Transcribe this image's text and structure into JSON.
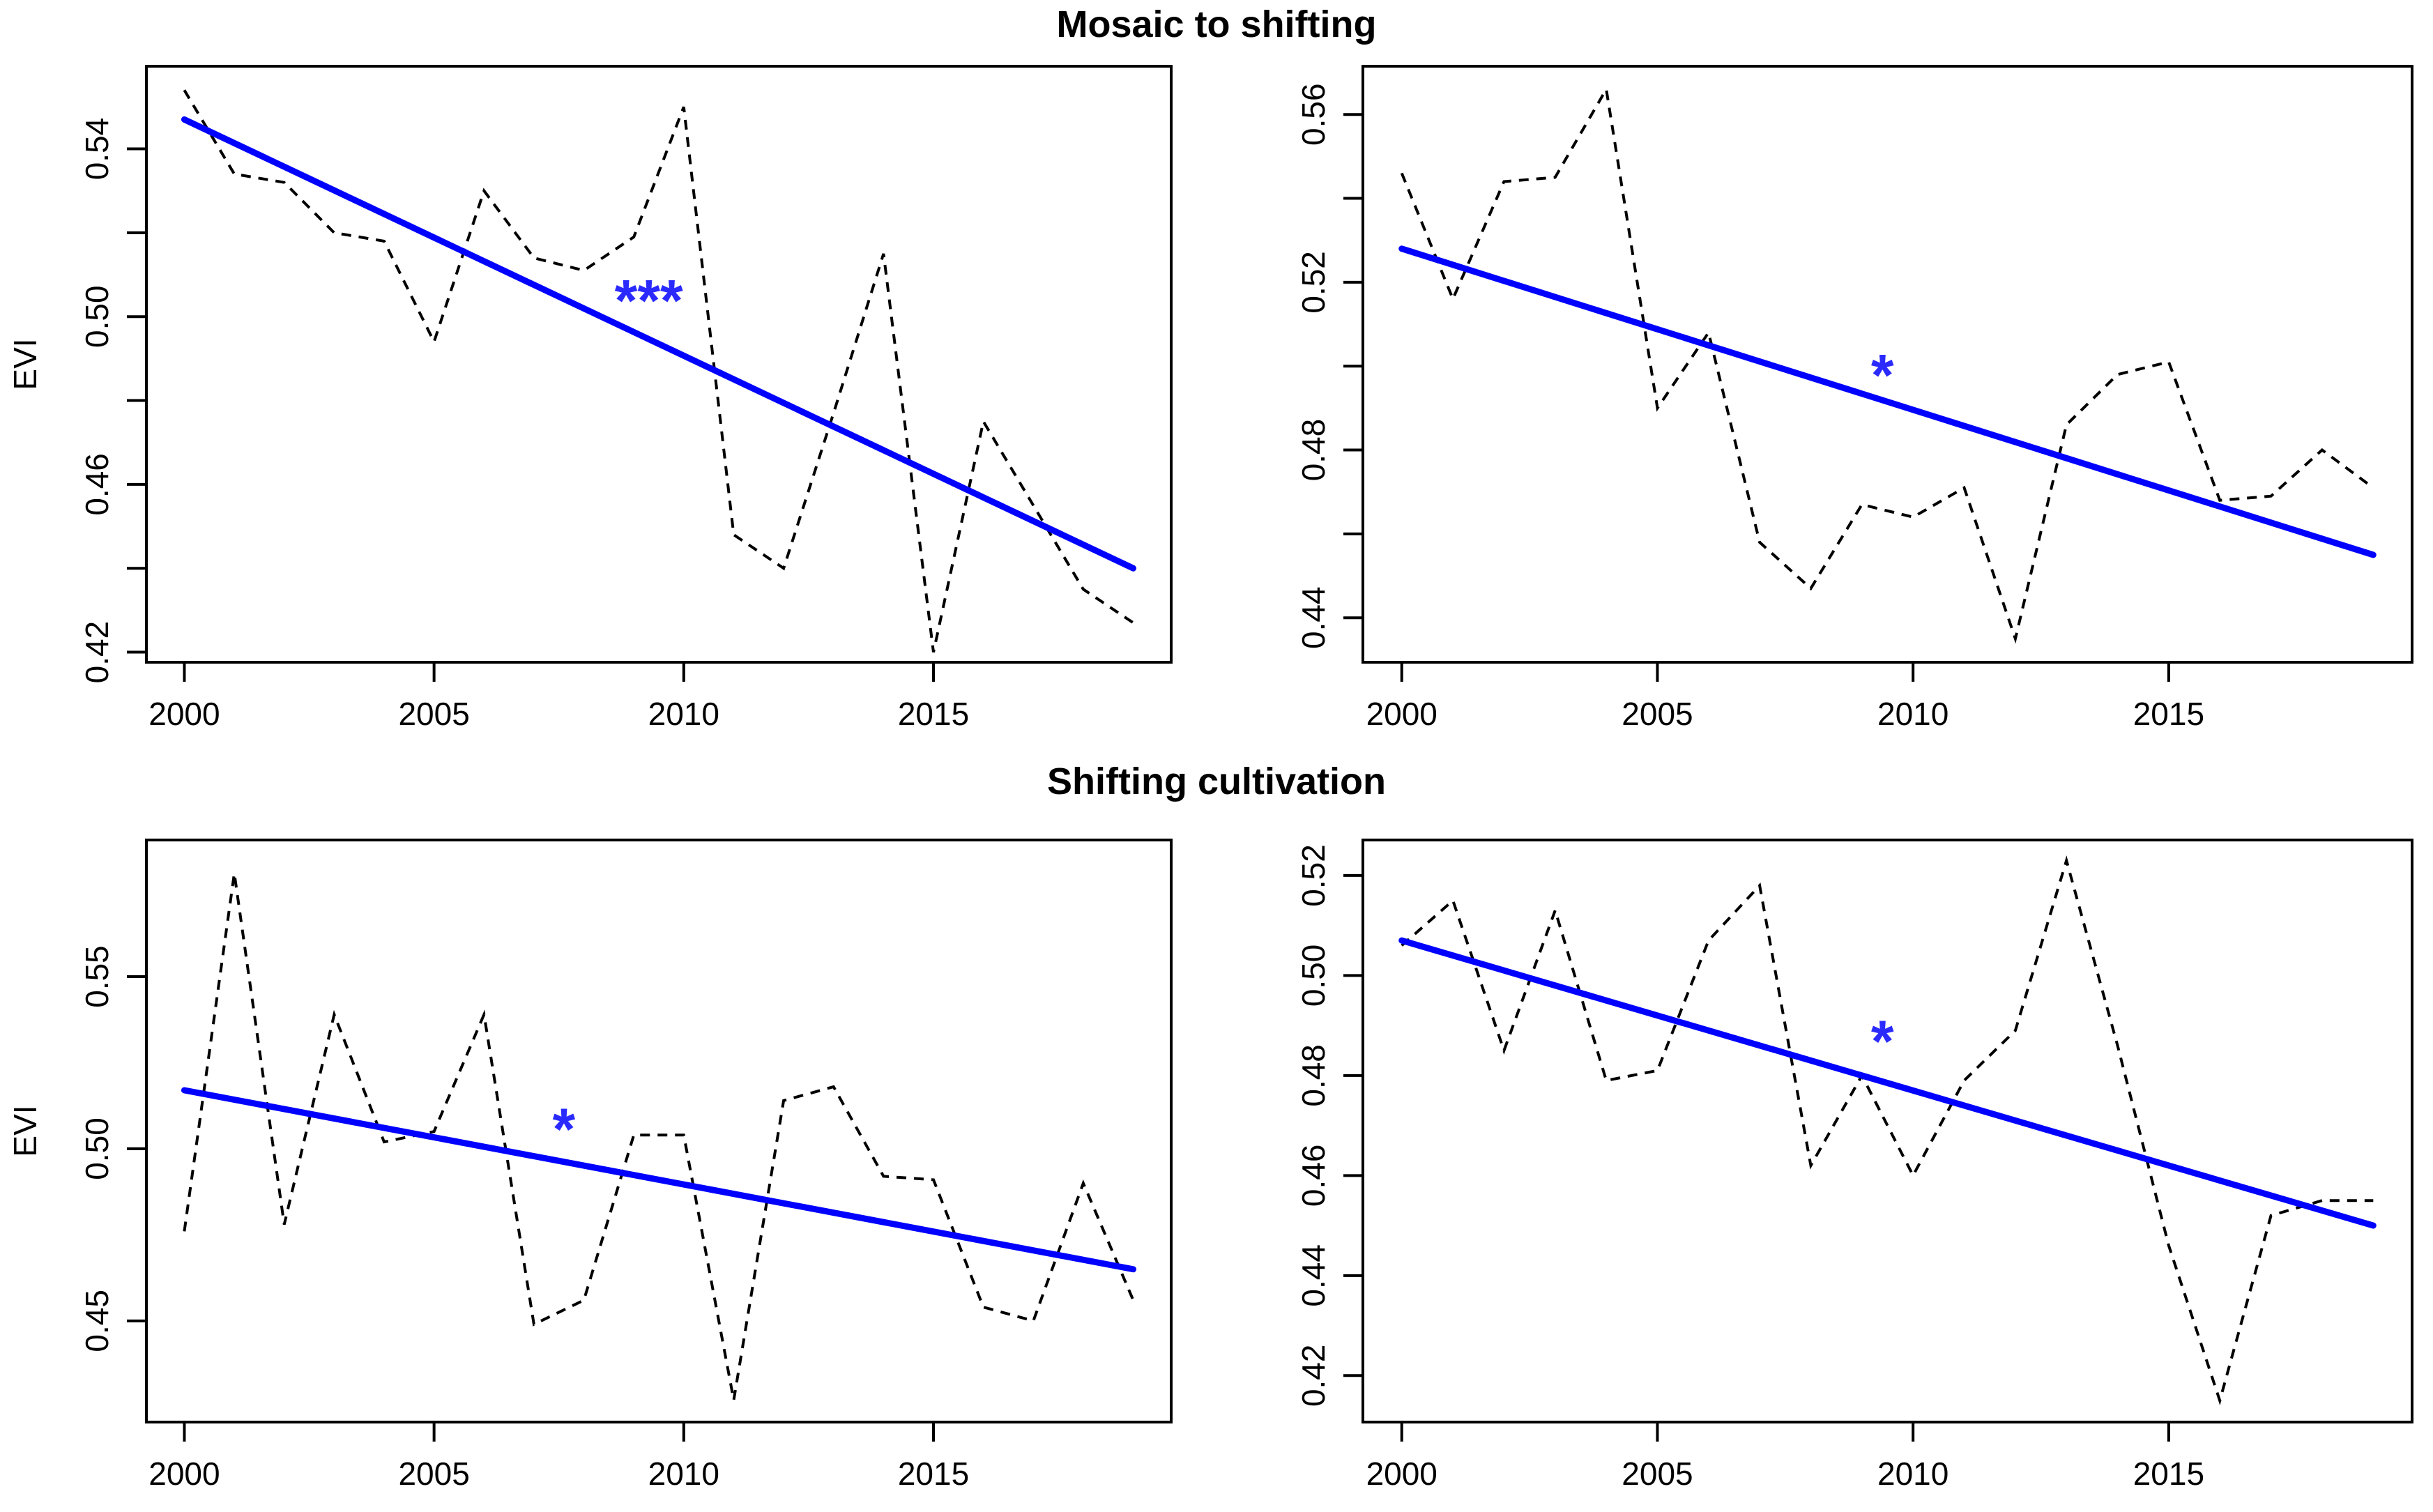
{
  "figure": {
    "titles": [
      "Mosaic to shifting",
      "Shifting cultivation"
    ],
    "colors": {
      "series": "#000000",
      "trend": "#0000ff",
      "marker": "#2a2aff",
      "axis": "#000000",
      "background": "#ffffff"
    }
  },
  "chart_data": [
    {
      "type": "line",
      "panel": "mosaic-to-shifting-left",
      "group_title": "Mosaic to shifting",
      "ylabel": "EVI",
      "x": [
        2000,
        2001,
        2002,
        2003,
        2004,
        2005,
        2006,
        2007,
        2008,
        2009,
        2010,
        2011,
        2012,
        2013,
        2014,
        2015,
        2016,
        2017,
        2018,
        2019
      ],
      "series": [
        {
          "name": "annual EVI",
          "style": "dashed",
          "color": "#000000",
          "values": [
            0.554,
            0.534,
            0.532,
            0.52,
            0.518,
            0.494,
            0.53,
            0.514,
            0.511,
            0.519,
            0.55,
            0.448,
            0.44,
            0.477,
            0.515,
            0.42,
            0.475,
            0.455,
            0.435,
            0.427
          ]
        },
        {
          "name": "linear trend",
          "style": "solid",
          "color": "#0000ff",
          "from": [
            2000,
            0.547
          ],
          "to": [
            2019,
            0.44
          ]
        }
      ],
      "significance_marker": {
        "text": "***",
        "x": 2009.3,
        "y": 0.504
      },
      "xlim": [
        1999.24,
        2019.76
      ],
      "ylim": [
        0.4176,
        0.5597
      ],
      "xticks": [
        2000,
        2005,
        2010,
        2015
      ],
      "xtick_labels": [
        "2000",
        "2005",
        "2010",
        "2015"
      ],
      "yticks": [
        0.42,
        0.44,
        0.46,
        0.48,
        0.5,
        0.52,
        0.54
      ],
      "ytick_labels": [
        "0.42",
        "",
        "0.46",
        "",
        "0.50",
        "",
        "0.54"
      ]
    },
    {
      "type": "line",
      "panel": "mosaic-to-shifting-right",
      "group_title": "Mosaic to shifting",
      "ylabel": "",
      "x": [
        2000,
        2001,
        2002,
        2003,
        2004,
        2005,
        2006,
        2007,
        2008,
        2009,
        2010,
        2011,
        2012,
        2013,
        2014,
        2015,
        2016,
        2017,
        2018,
        2019
      ],
      "series": [
        {
          "name": "annual EVI",
          "style": "dashed",
          "color": "#000000",
          "values": [
            0.546,
            0.516,
            0.544,
            0.545,
            0.566,
            0.49,
            0.508,
            0.458,
            0.447,
            0.467,
            0.464,
            0.471,
            0.435,
            0.486,
            0.498,
            0.501,
            0.468,
            0.469,
            0.48,
            0.471
          ]
        },
        {
          "name": "linear trend",
          "style": "solid",
          "color": "#0000ff",
          "from": [
            2000,
            0.528
          ],
          "to": [
            2019,
            0.455
          ]
        }
      ],
      "significance_marker": {
        "text": "*",
        "x": 2009.4,
        "y": 0.498
      },
      "xlim": [
        1999.24,
        2019.76
      ],
      "ylim": [
        0.4294,
        0.5715
      ],
      "xticks": [
        2000,
        2005,
        2010,
        2015
      ],
      "xtick_labels": [
        "2000",
        "2005",
        "2010",
        "2015"
      ],
      "yticks": [
        0.44,
        0.46,
        0.48,
        0.5,
        0.52,
        0.54,
        0.56
      ],
      "ytick_labels": [
        "0.44",
        "",
        "0.48",
        "",
        "0.52",
        "",
        "0.56"
      ]
    },
    {
      "type": "line",
      "panel": "shifting-cultivation-left",
      "group_title": "Shifting cultivation",
      "ylabel": "EVI",
      "x": [
        2000,
        2001,
        2002,
        2003,
        2004,
        2005,
        2006,
        2007,
        2008,
        2009,
        2010,
        2011,
        2012,
        2013,
        2014,
        2015,
        2016,
        2017,
        2018,
        2019
      ],
      "series": [
        {
          "name": "annual EVI",
          "style": "dashed",
          "color": "#000000",
          "values": [
            0.476,
            0.58,
            0.478,
            0.539,
            0.502,
            0.505,
            0.539,
            0.449,
            0.456,
            0.504,
            0.504,
            0.427,
            0.514,
            0.518,
            0.492,
            0.491,
            0.454,
            0.45,
            0.49,
            0.456
          ]
        },
        {
          "name": "linear trend",
          "style": "solid",
          "color": "#0000ff",
          "from": [
            2000,
            0.517
          ],
          "to": [
            2019,
            0.465
          ]
        }
      ],
      "significance_marker": {
        "text": "*",
        "x": 2007.6,
        "y": 0.506
      },
      "xlim": [
        1999.24,
        2019.76
      ],
      "ylim": [
        0.4206,
        0.5897
      ],
      "xticks": [
        2000,
        2005,
        2010,
        2015
      ],
      "xtick_labels": [
        "2000",
        "2005",
        "2010",
        "2015"
      ],
      "yticks": [
        0.45,
        0.5,
        0.55
      ],
      "ytick_labels": [
        "0.45",
        "0.50",
        "0.55"
      ]
    },
    {
      "type": "line",
      "panel": "shifting-cultivation-right",
      "group_title": "Shifting cultivation",
      "ylabel": "",
      "x": [
        2000,
        2001,
        2002,
        2003,
        2004,
        2005,
        2006,
        2007,
        2008,
        2009,
        2010,
        2011,
        2012,
        2013,
        2014,
        2015,
        2016,
        2017,
        2018,
        2019
      ],
      "series": [
        {
          "name": "annual EVI",
          "style": "dashed",
          "color": "#000000",
          "values": [
            0.506,
            0.515,
            0.485,
            0.513,
            0.479,
            0.481,
            0.507,
            0.518,
            0.462,
            0.48,
            0.46,
            0.479,
            0.489,
            0.523,
            0.486,
            0.446,
            0.415,
            0.452,
            0.455,
            0.455
          ]
        },
        {
          "name": "linear trend",
          "style": "solid",
          "color": "#0000ff",
          "from": [
            2000,
            0.507
          ],
          "to": [
            2019,
            0.45
          ]
        }
      ],
      "significance_marker": {
        "text": "*",
        "x": 2009.4,
        "y": 0.487
      },
      "xlim": [
        1999.24,
        2019.76
      ],
      "ylim": [
        0.4107,
        0.5271
      ],
      "xticks": [
        2000,
        2005,
        2010,
        2015
      ],
      "xtick_labels": [
        "2000",
        "2005",
        "2010",
        "2015"
      ],
      "yticks": [
        0.42,
        0.44,
        0.46,
        0.48,
        0.5,
        0.52
      ],
      "ytick_labels": [
        "0.42",
        "0.44",
        "0.46",
        "0.48",
        "0.50",
        "0.52"
      ]
    }
  ]
}
